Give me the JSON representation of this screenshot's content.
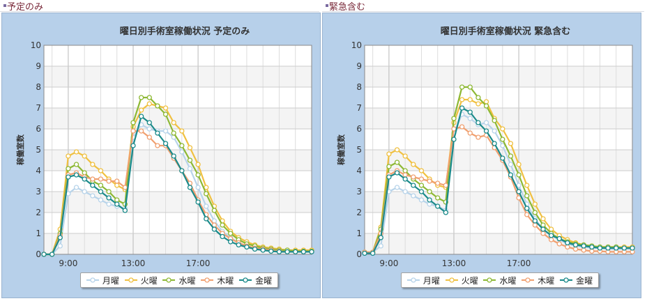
{
  "sections": [
    {
      "header": "予定のみ"
    },
    {
      "header": "緊急含む"
    }
  ],
  "chart_data": [
    {
      "type": "line",
      "title": "曜日別手術室稼働状況 予定のみ",
      "ylabel": "稼働室数",
      "xlabel": "",
      "ylim": [
        0,
        10
      ],
      "yticks": [
        "0",
        "1",
        "2",
        "3",
        "4",
        "5",
        "6",
        "7",
        "8",
        "9",
        "10"
      ],
      "xticks": [
        {
          "x": 9,
          "label": "9:00"
        },
        {
          "x": 13,
          "label": "13:00"
        },
        {
          "x": 17,
          "label": "17:00"
        }
      ],
      "xlim": [
        7.5,
        24
      ],
      "x": [
        7.5,
        8,
        8.5,
        9,
        9.5,
        10,
        10.5,
        11,
        11.5,
        12,
        12.5,
        13,
        13.5,
        14,
        14.5,
        15,
        15.5,
        16,
        16.5,
        17,
        17.5,
        18,
        18.5,
        19,
        19.5,
        20,
        20.5,
        21,
        21.5,
        22,
        22.5,
        23,
        23.5,
        24
      ],
      "grid": true,
      "legend": "bottom",
      "series": [
        {
          "name": "月曜",
          "color": "#b8d4ea",
          "values": [
            0,
            0,
            0.4,
            2.9,
            3.2,
            3.0,
            2.8,
            2.6,
            2.4,
            2.3,
            2.2,
            5.6,
            6.2,
            6.0,
            5.9,
            5.9,
            5.6,
            4.9,
            4.1,
            3.2,
            2.3,
            1.6,
            1.1,
            0.8,
            0.55,
            0.4,
            0.3,
            0.25,
            0.2,
            0.15,
            0.12,
            0.12,
            0.12,
            0.12
          ]
        },
        {
          "name": "火曜",
          "color": "#f0c040",
          "values": [
            0,
            0,
            1.2,
            4.7,
            4.9,
            4.7,
            4.3,
            4.0,
            3.6,
            3.3,
            3.1,
            6.1,
            6.9,
            7.2,
            7.1,
            7.0,
            6.3,
            5.9,
            5.1,
            4.3,
            3.2,
            2.3,
            1.6,
            1.1,
            0.8,
            0.6,
            0.45,
            0.35,
            0.3,
            0.25,
            0.2,
            0.2,
            0.2,
            0.2
          ]
        },
        {
          "name": "水曜",
          "color": "#8db833",
          "values": [
            0,
            0,
            1.0,
            4.1,
            4.3,
            3.9,
            3.5,
            3.3,
            3.0,
            2.6,
            2.4,
            6.3,
            7.5,
            7.5,
            7.1,
            6.7,
            5.8,
            5.2,
            4.5,
            3.8,
            2.9,
            2.1,
            1.4,
            1.0,
            0.7,
            0.5,
            0.4,
            0.3,
            0.25,
            0.2,
            0.2,
            0.15,
            0.15,
            0.15
          ]
        },
        {
          "name": "木曜",
          "color": "#f0a070",
          "values": [
            0,
            0,
            0.9,
            3.8,
            3.9,
            3.7,
            3.6,
            3.6,
            3.5,
            3.5,
            3.2,
            5.9,
            5.9,
            5.6,
            5.2,
            5.2,
            4.6,
            4.0,
            3.4,
            2.6,
            1.9,
            1.4,
            1.0,
            0.75,
            0.55,
            0.4,
            0.3,
            0.25,
            0.2,
            0.15,
            0.12,
            0.12,
            0.12,
            0.12
          ]
        },
        {
          "name": "金曜",
          "color": "#1a8a8a",
          "values": [
            0,
            0,
            0.8,
            3.7,
            3.8,
            3.6,
            3.3,
            3.0,
            2.7,
            2.4,
            2.1,
            5.2,
            6.6,
            6.3,
            5.8,
            5.3,
            4.7,
            4.0,
            3.2,
            2.5,
            1.7,
            1.2,
            0.85,
            0.6,
            0.45,
            0.35,
            0.25,
            0.2,
            0.15,
            0.12,
            0.12,
            0.12,
            0.12,
            0.12
          ]
        }
      ]
    },
    {
      "type": "line",
      "title": "曜日別手術室稼働状況 緊急含む",
      "ylabel": "稼働室数",
      "xlabel": "",
      "ylim": [
        0,
        10
      ],
      "yticks": [
        "0",
        "1",
        "2",
        "3",
        "4",
        "5",
        "6",
        "7",
        "8",
        "9",
        "10"
      ],
      "xticks": [
        {
          "x": 9,
          "label": "9:00"
        },
        {
          "x": 13,
          "label": "13:00"
        },
        {
          "x": 17,
          "label": "17:00"
        }
      ],
      "xlim": [
        7.5,
        24
      ],
      "x": [
        7.5,
        8,
        8.5,
        9,
        9.5,
        10,
        10.5,
        11,
        11.5,
        12,
        12.5,
        13,
        13.5,
        14,
        14.5,
        15,
        15.5,
        16,
        16.5,
        17,
        17.5,
        18,
        18.5,
        19,
        19.5,
        20,
        20.5,
        21,
        21.5,
        22,
        22.5,
        23,
        23.5,
        24
      ],
      "grid": true,
      "legend": "bottom",
      "series": [
        {
          "name": "月曜",
          "color": "#b8d4ea",
          "values": [
            0.1,
            0.1,
            0.4,
            3.0,
            3.2,
            3.0,
            2.8,
            2.6,
            2.4,
            2.3,
            2.1,
            5.8,
            6.7,
            6.5,
            6.2,
            6.3,
            5.9,
            5.2,
            4.3,
            3.3,
            2.4,
            1.7,
            1.2,
            0.9,
            0.7,
            0.5,
            0.4,
            0.35,
            0.3,
            0.3,
            0.25,
            0.25,
            0.25,
            0.25
          ]
        },
        {
          "name": "火曜",
          "color": "#f0c040",
          "values": [
            0.1,
            0.1,
            1.3,
            4.8,
            5.0,
            4.7,
            4.3,
            4.0,
            3.6,
            3.3,
            3.2,
            6.3,
            7.4,
            7.4,
            7.2,
            7.3,
            6.5,
            6.0,
            5.3,
            4.3,
            3.3,
            2.4,
            1.7,
            1.2,
            0.9,
            0.7,
            0.55,
            0.45,
            0.4,
            0.35,
            0.35,
            0.35,
            0.35,
            0.35
          ]
        },
        {
          "name": "水曜",
          "color": "#8db833",
          "values": [
            0.1,
            0.1,
            1.2,
            4.2,
            4.4,
            4.0,
            3.6,
            3.3,
            3.0,
            2.7,
            2.5,
            6.5,
            8.0,
            8.0,
            7.5,
            7.1,
            6.4,
            5.5,
            4.7,
            3.8,
            2.8,
            2.0,
            1.4,
            1.0,
            0.75,
            0.6,
            0.5,
            0.45,
            0.4,
            0.35,
            0.35,
            0.35,
            0.3,
            0.3
          ]
        },
        {
          "name": "木曜",
          "color": "#f0a070",
          "values": [
            0.1,
            0.1,
            1.0,
            3.8,
            4.0,
            3.8,
            3.7,
            3.6,
            3.5,
            3.4,
            3.3,
            6.0,
            6.1,
            5.8,
            5.6,
            5.7,
            5.1,
            4.5,
            3.7,
            2.7,
            1.9,
            1.4,
            1.0,
            0.7,
            0.5,
            0.35,
            0.25,
            0.2,
            0.15,
            0.15,
            0.12,
            0.12,
            0.12,
            0.12
          ]
        },
        {
          "name": "金曜",
          "color": "#1a8a8a",
          "values": [
            0.05,
            0.05,
            0.8,
            3.7,
            3.9,
            3.6,
            3.3,
            3.0,
            2.6,
            2.3,
            2.0,
            5.5,
            7.0,
            6.8,
            6.3,
            5.9,
            5.3,
            4.6,
            3.8,
            3.0,
            2.2,
            1.6,
            1.2,
            0.9,
            0.75,
            0.55,
            0.45,
            0.4,
            0.35,
            0.3,
            0.3,
            0.3,
            0.3,
            0.3
          ]
        }
      ]
    }
  ]
}
